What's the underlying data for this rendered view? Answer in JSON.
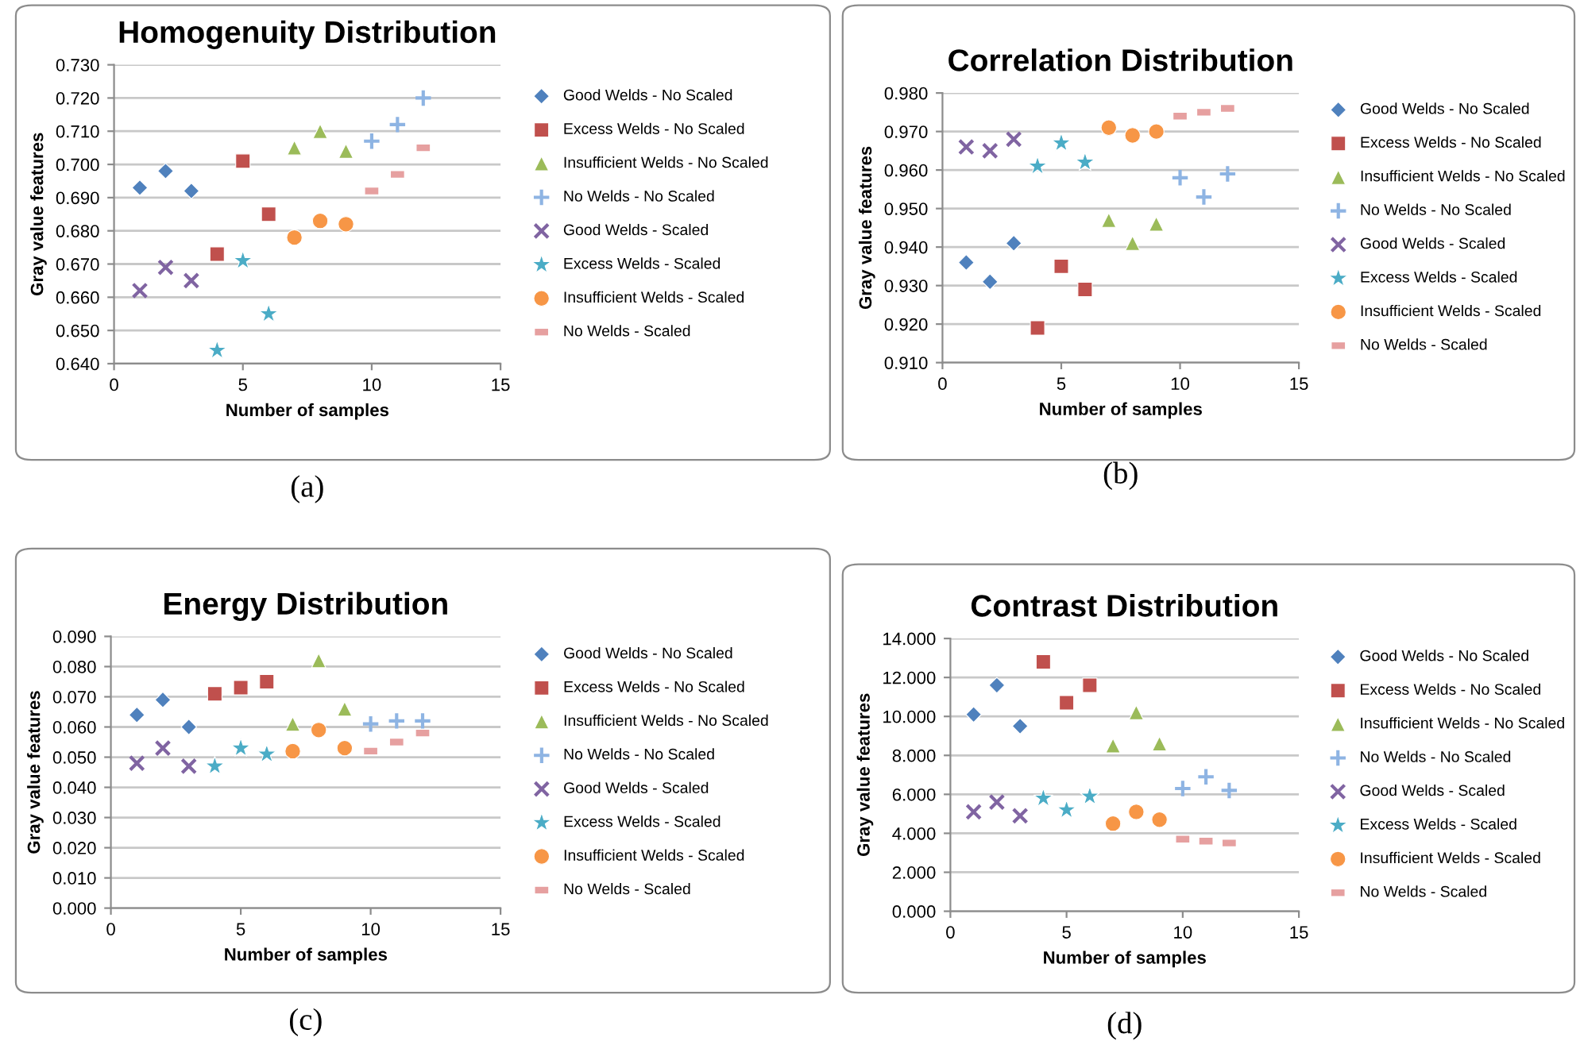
{
  "chart_data": [
    {
      "type": "scatter",
      "title": "Homogenuity Distribution",
      "xlabel": "Number of samples",
      "ylabel": "Gray value features",
      "annotations": [
        "(a)"
      ],
      "xlim": [
        0,
        15
      ],
      "xticks": [
        0,
        5,
        10,
        15
      ],
      "ylim": [
        0.64,
        0.73
      ],
      "yticks": [
        {
          "value": 0.64,
          "label": "0.640"
        },
        {
          "value": 0.65,
          "label": "0.650"
        },
        {
          "value": 0.66,
          "label": "0.660"
        },
        {
          "value": 0.67,
          "label": "0.670"
        },
        {
          "value": 0.68,
          "label": "0.680"
        },
        {
          "value": 0.69,
          "label": "0.690"
        },
        {
          "value": 0.7,
          "label": "0.700"
        },
        {
          "value": 0.71,
          "label": "0.710"
        },
        {
          "value": 0.72,
          "label": "0.720"
        },
        {
          "value": 0.73,
          "label": "0.730"
        }
      ],
      "grid": "y",
      "legend": "right",
      "series": [
        {
          "name": "Good Welds - No Scaled",
          "color": "#4f81bd",
          "marker": "diamond",
          "x": [
            1,
            2,
            3
          ],
          "values": [
            0.693,
            0.698,
            0.692
          ]
        },
        {
          "name": "Excess Welds - No Scaled",
          "color": "#c0504d",
          "marker": "square",
          "x": [
            4,
            5,
            6
          ],
          "values": [
            0.673,
            0.701,
            0.685
          ]
        },
        {
          "name": "Insufficient Welds - No Scaled",
          "color": "#9bbb59",
          "marker": "triangle",
          "x": [
            7,
            8,
            9
          ],
          "values": [
            0.705,
            0.71,
            0.704
          ]
        },
        {
          "name": "No Welds - No Scaled",
          "color": "#8eb4e3",
          "marker": "plus",
          "x": [
            10,
            11,
            12
          ],
          "values": [
            0.707,
            0.712,
            0.72
          ]
        },
        {
          "name": "Good Welds - Scaled",
          "color": "#8064a2",
          "marker": "cross",
          "x": [
            1,
            2,
            3
          ],
          "values": [
            0.662,
            0.669,
            0.665
          ]
        },
        {
          "name": "Excess Welds - Scaled",
          "color": "#4bacc6",
          "marker": "star",
          "x": [
            4,
            5,
            6
          ],
          "values": [
            0.644,
            0.671,
            0.655
          ]
        },
        {
          "name": "Insufficient Welds - Scaled",
          "color": "#f79646",
          "marker": "circle",
          "x": [
            7,
            8,
            9
          ],
          "values": [
            0.678,
            0.683,
            0.682
          ]
        },
        {
          "name": "No Welds - Scaled",
          "color": "#e6a0a0",
          "x": [
            10,
            11,
            12
          ],
          "values": [
            0.692,
            0.697,
            0.705
          ]
        }
      ]
    },
    {
      "type": "scatter",
      "title": "Correlation Distribution",
      "xlabel": "Number of samples",
      "ylabel": "Gray value features",
      "annotations": [
        "(b)"
      ],
      "xlim": [
        0,
        15
      ],
      "xticks": [
        0,
        5,
        10,
        15
      ],
      "ylim": [
        0.91,
        0.98
      ],
      "yticks": [
        {
          "value": 0.91,
          "label": "0.910"
        },
        {
          "value": 0.92,
          "label": "0.920"
        },
        {
          "value": 0.93,
          "label": "0.930"
        },
        {
          "value": 0.94,
          "label": "0.940"
        },
        {
          "value": 0.95,
          "label": "0.950"
        },
        {
          "value": 0.96,
          "label": "0.960"
        },
        {
          "value": 0.97,
          "label": "0.970"
        },
        {
          "value": 0.98,
          "label": "0.980"
        }
      ],
      "grid": "y",
      "legend": "right",
      "series": [
        {
          "name": "Good Welds - No Scaled",
          "color": "#4f81bd",
          "marker": "diamond",
          "x": [
            1,
            2,
            3
          ],
          "values": [
            0.936,
            0.931,
            0.941
          ]
        },
        {
          "name": "Excess Welds - No Scaled",
          "color": "#c0504d",
          "marker": "square",
          "x": [
            4,
            5,
            6
          ],
          "values": [
            0.919,
            0.935,
            0.929
          ]
        },
        {
          "name": "Insufficient Welds - No Scaled",
          "color": "#9bbb59",
          "marker": "triangle",
          "x": [
            7,
            8,
            9
          ],
          "values": [
            0.947,
            0.941,
            0.946
          ]
        },
        {
          "name": "No Welds - No Scaled",
          "color": "#8eb4e3",
          "marker": "plus",
          "x": [
            10,
            11,
            12
          ],
          "values": [
            0.958,
            0.953,
            0.959
          ]
        },
        {
          "name": "Good Welds - Scaled",
          "color": "#8064a2",
          "marker": "cross",
          "x": [
            1,
            2,
            3
          ],
          "values": [
            0.966,
            0.965,
            0.968
          ]
        },
        {
          "name": "Excess Welds - Scaled",
          "color": "#4bacc6",
          "marker": "star",
          "x": [
            4,
            5,
            6
          ],
          "values": [
            0.961,
            0.967,
            0.962
          ]
        },
        {
          "name": "Insufficient Welds - Scaled",
          "color": "#f79646",
          "marker": "circle",
          "x": [
            7,
            8,
            9
          ],
          "values": [
            0.971,
            0.969,
            0.97
          ]
        },
        {
          "name": "No Welds - Scaled",
          "color": "#e6a0a0",
          "x": [
            10,
            11,
            12
          ],
          "values": [
            0.974,
            0.975,
            0.976
          ]
        }
      ]
    },
    {
      "type": "scatter",
      "title": "Energy Distribution",
      "xlabel": "Number of samples",
      "ylabel": "Gray value features",
      "annotations": [
        "(c)"
      ],
      "xlim": [
        0,
        15
      ],
      "xticks": [
        0,
        5,
        10,
        15
      ],
      "ylim": [
        0,
        0.09
      ],
      "yticks": [
        {
          "value": 0,
          "label": "0.000"
        },
        {
          "value": 0.01,
          "label": "0.010"
        },
        {
          "value": 0.02,
          "label": "0.020"
        },
        {
          "value": 0.03,
          "label": "0.030"
        },
        {
          "value": 0.04,
          "label": "0.040"
        },
        {
          "value": 0.05,
          "label": "0.050"
        },
        {
          "value": 0.06,
          "label": "0.060"
        },
        {
          "value": 0.07,
          "label": "0.070"
        },
        {
          "value": 0.08,
          "label": "0.080"
        },
        {
          "value": 0.09,
          "label": "0.090"
        }
      ],
      "grid": "y",
      "legend": "right",
      "series": [
        {
          "name": "Good Welds - No Scaled",
          "color": "#4f81bd",
          "marker": "diamond",
          "x": [
            1,
            2,
            3
          ],
          "values": [
            0.064,
            0.069,
            0.06
          ]
        },
        {
          "name": "Excess Welds - No Scaled",
          "color": "#c0504d",
          "marker": "square",
          "x": [
            4,
            5,
            6
          ],
          "values": [
            0.071,
            0.073,
            0.075
          ]
        },
        {
          "name": "Insufficient Welds - No Scaled",
          "color": "#9bbb59",
          "marker": "triangle",
          "x": [
            7,
            8,
            9
          ],
          "values": [
            0.061,
            0.082,
            0.066
          ]
        },
        {
          "name": "No Welds - No Scaled",
          "color": "#8eb4e3",
          "marker": "plus",
          "x": [
            10,
            11,
            12
          ],
          "values": [
            0.061,
            0.062,
            0.062
          ]
        },
        {
          "name": "Good Welds - Scaled",
          "color": "#8064a2",
          "marker": "cross",
          "x": [
            1,
            2,
            3
          ],
          "values": [
            0.048,
            0.053,
            0.047
          ]
        },
        {
          "name": "Excess Welds - Scaled",
          "color": "#4bacc6",
          "marker": "star",
          "x": [
            4,
            5,
            6
          ],
          "values": [
            0.047,
            0.053,
            0.051
          ]
        },
        {
          "name": "Insufficient Welds - Scaled",
          "color": "#f79646",
          "marker": "circle",
          "x": [
            7,
            8,
            9
          ],
          "values": [
            0.052,
            0.059,
            0.053
          ]
        },
        {
          "name": "No Welds - Scaled",
          "color": "#e6a0a0",
          "x": [
            10,
            11,
            12
          ],
          "values": [
            0.052,
            0.055,
            0.058
          ]
        }
      ]
    },
    {
      "type": "scatter",
      "title": "Contrast Distribution",
      "xlabel": "Number of samples",
      "ylabel": "Gray value features",
      "annotations": [
        "(d)"
      ],
      "xlim": [
        0,
        15
      ],
      "xticks": [
        0,
        5,
        10,
        15
      ],
      "ylim": [
        0,
        14
      ],
      "yticks": [
        {
          "value": 0,
          "label": "0.000"
        },
        {
          "value": 2,
          "label": "2.000"
        },
        {
          "value": 4,
          "label": "4.000"
        },
        {
          "value": 6,
          "label": "6.000"
        },
        {
          "value": 8,
          "label": "8.000"
        },
        {
          "value": 10,
          "label": "10.000"
        },
        {
          "value": 12,
          "label": "12.000"
        },
        {
          "value": 14,
          "label": "14.000"
        }
      ],
      "grid": "y",
      "legend": "right",
      "series": [
        {
          "name": "Good Welds - No Scaled",
          "color": "#4f81bd",
          "marker": "diamond",
          "x": [
            1,
            2,
            3
          ],
          "values": [
            10.1,
            11.6,
            9.5
          ]
        },
        {
          "name": "Excess Welds - No Scaled",
          "color": "#c0504d",
          "marker": "square",
          "x": [
            4,
            5,
            6
          ],
          "values": [
            12.8,
            10.7,
            11.6
          ]
        },
        {
          "name": "Insufficient Welds - No Scaled",
          "color": "#9bbb59",
          "marker": "triangle",
          "x": [
            7,
            8,
            9
          ],
          "values": [
            8.5,
            10.2,
            8.6
          ]
        },
        {
          "name": "No Welds - No Scaled",
          "color": "#8eb4e3",
          "marker": "plus",
          "x": [
            10,
            11,
            12
          ],
          "values": [
            6.3,
            6.9,
            6.2
          ]
        },
        {
          "name": "Good Welds - Scaled",
          "color": "#8064a2",
          "marker": "cross",
          "x": [
            1,
            2,
            3
          ],
          "values": [
            5.1,
            5.6,
            4.9
          ]
        },
        {
          "name": "Excess Welds - Scaled",
          "color": "#4bacc6",
          "marker": "star",
          "x": [
            4,
            5,
            6
          ],
          "values": [
            5.8,
            5.2,
            5.9
          ]
        },
        {
          "name": "Insufficient Welds - Scaled",
          "color": "#f79646",
          "marker": "circle",
          "x": [
            7,
            8,
            9
          ],
          "values": [
            4.5,
            5.1,
            4.7
          ]
        },
        {
          "name": "No Welds - Scaled",
          "color": "#e6a0a0",
          "x": [
            10,
            11,
            12
          ],
          "values": [
            3.7,
            3.6,
            3.5
          ]
        }
      ]
    }
  ]
}
